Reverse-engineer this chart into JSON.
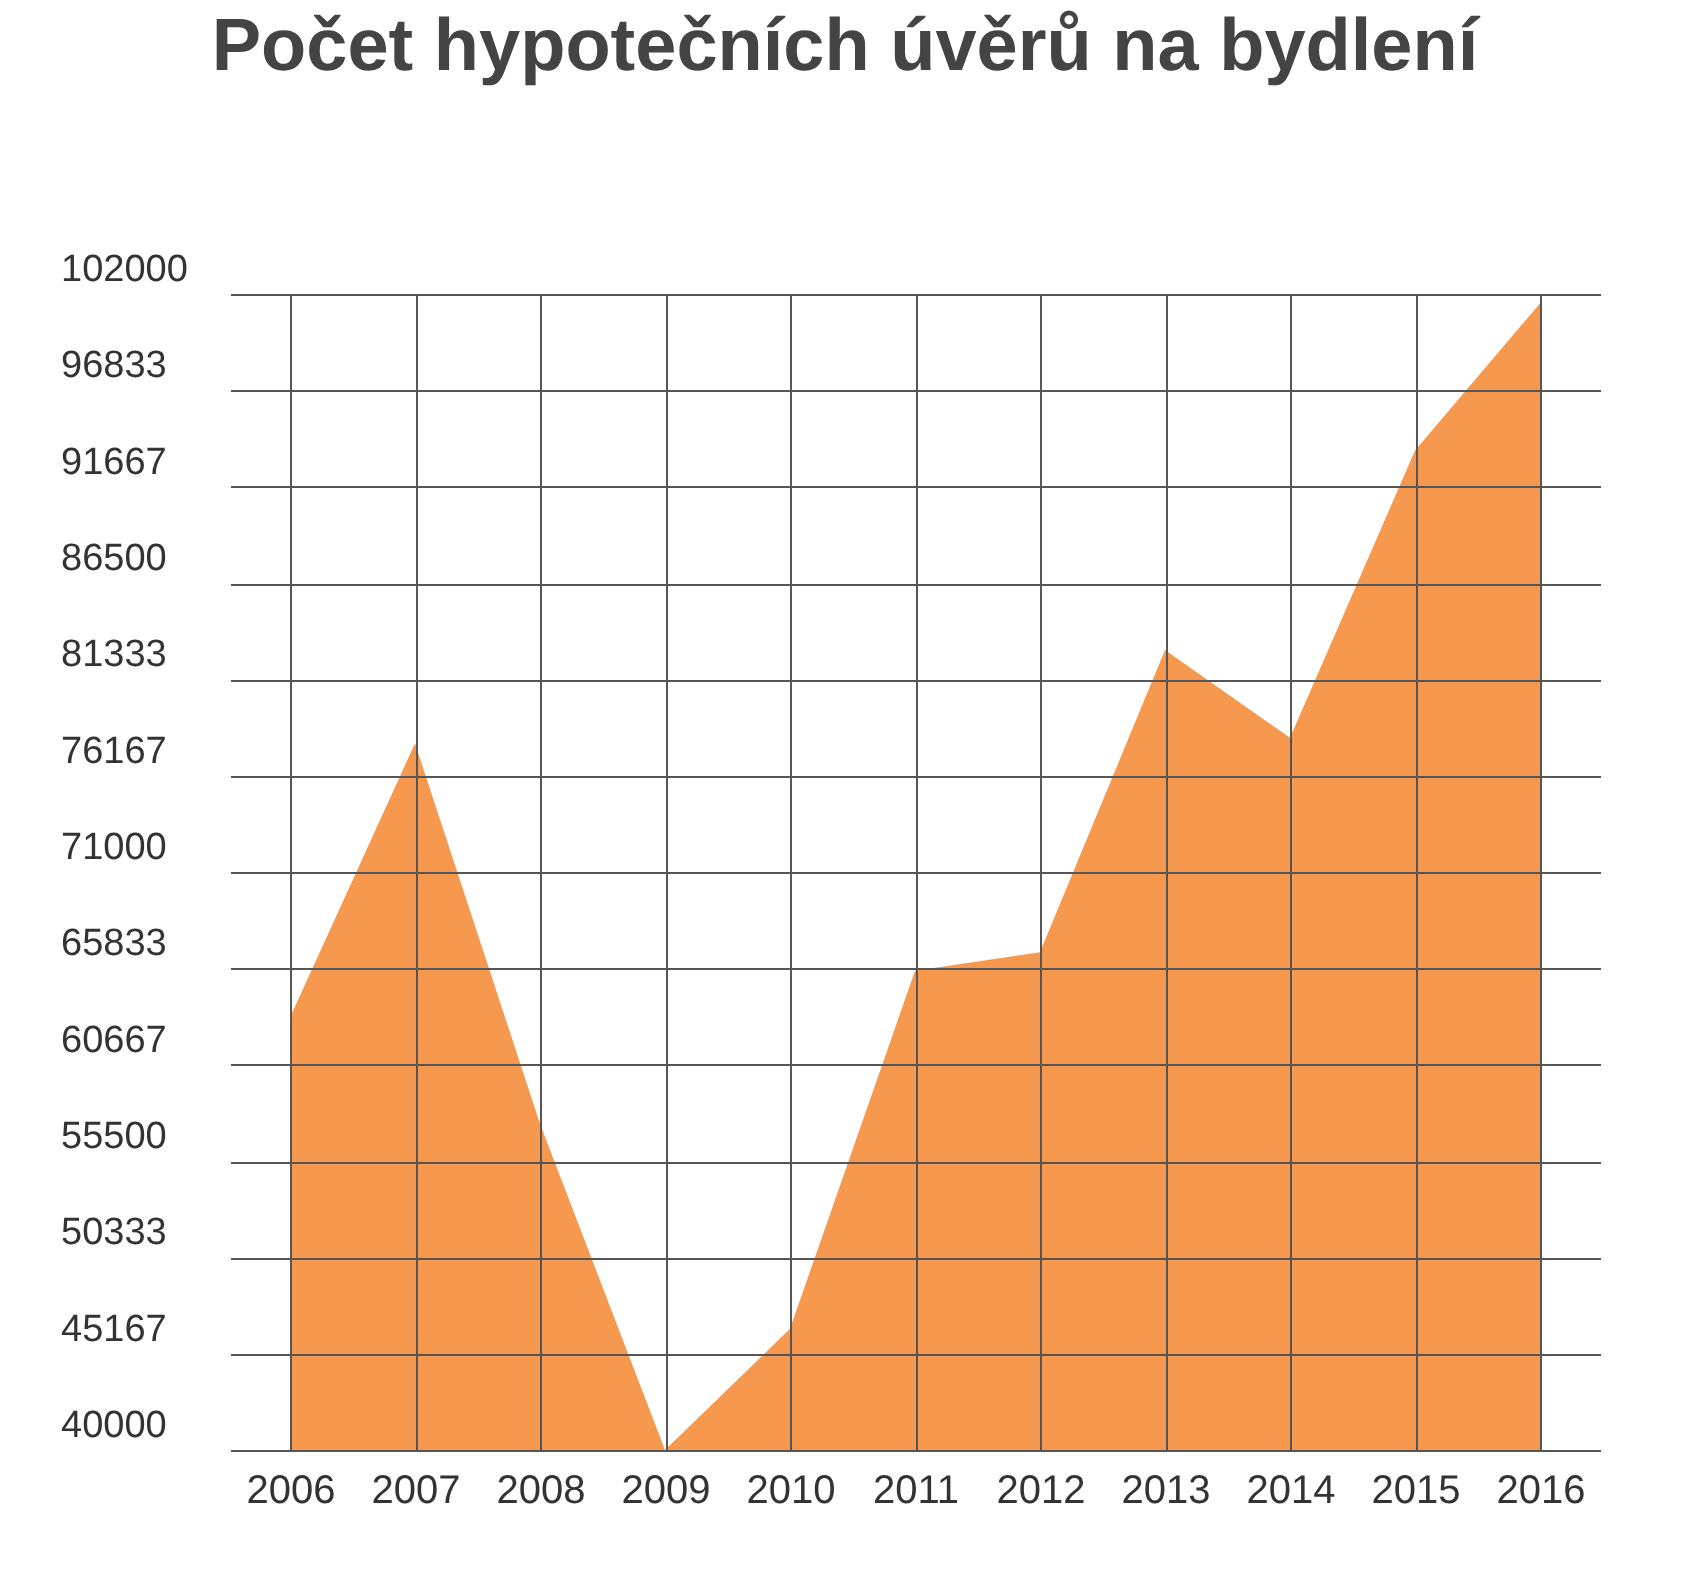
{
  "chart_data": {
    "type": "area",
    "title": "Počet hypotečních úvěrů na bydlení",
    "categories": [
      "2006",
      "2007",
      "2008",
      "2009",
      "2010",
      "2011",
      "2012",
      "2013",
      "2014",
      "2015",
      "2016"
    ],
    "values": [
      63200,
      77900,
      57500,
      40000,
      46500,
      65700,
      66700,
      82900,
      78200,
      93600,
      101500
    ],
    "color": "#f7984f",
    "ylim": [
      40000,
      102000
    ],
    "yticks": [
      40000,
      45167,
      50333,
      55500,
      60667,
      65833,
      71000,
      76167,
      81333,
      86500,
      91667,
      96833,
      102000
    ],
    "grid": true
  }
}
